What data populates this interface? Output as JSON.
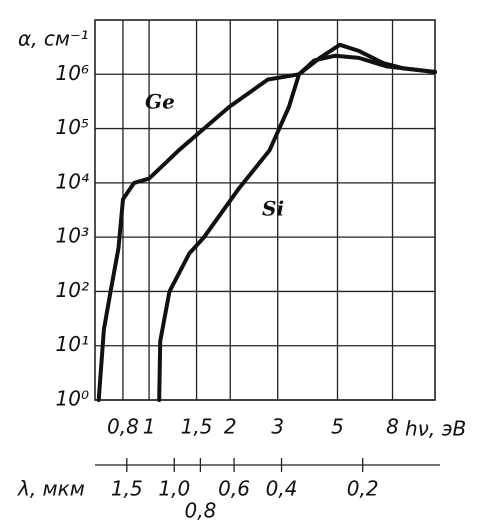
{
  "chart_data": {
    "type": "line",
    "y_label": "α, см⁻¹",
    "x_label": "hν, эВ",
    "x2_label": "λ, мкм",
    "log_x": true,
    "log_y": true,
    "grid": true,
    "xlim": [
      0.63,
      11.5
    ],
    "ylim": [
      1,
      10000000
    ],
    "xticks": [
      {
        "value": 0.8,
        "label": "0,8"
      },
      1,
      {
        "value": 1.5,
        "label": "1,5"
      },
      2,
      3,
      5,
      8
    ],
    "x2ticks": [
      {
        "value": 1.5,
        "label": "1,5"
      },
      {
        "value": 1.0,
        "label": "1,0"
      },
      {
        "value": 0.8,
        "label": "0,8"
      },
      {
        "value": 0.6,
        "label": "0,6"
      },
      {
        "value": 0.4,
        "label": "0,4"
      },
      {
        "value": 0.2,
        "label": "0,2"
      }
    ],
    "yticks": [
      {
        "value": 1,
        "label": "10⁰"
      },
      {
        "value": 10,
        "label": "10¹"
      },
      {
        "value": 100,
        "label": "10²"
      },
      {
        "value": 1000,
        "label": "10³"
      },
      {
        "value": 10000,
        "label": "10⁴"
      },
      {
        "value": 100000,
        "label": "10⁵"
      },
      {
        "value": 1000000,
        "label": "10⁶"
      }
    ],
    "series": [
      {
        "name": "Ge",
        "color": "#111111",
        "x": [
          0.65,
          0.68,
          0.72,
          0.77,
          0.8,
          0.88,
          1.0,
          1.29,
          1.98,
          2.76,
          3.6,
          4.3,
          5.1,
          6.0,
          7.4,
          8.7,
          11.5
        ],
        "values": [
          1,
          20,
          100,
          630,
          5000,
          10000,
          12000,
          40000,
          250000,
          800000,
          1000000,
          2000000,
          3500000,
          2700000,
          1600000,
          1300000,
          1100000
        ]
      },
      {
        "name": "Si",
        "color": "#111111",
        "x": [
          1.09,
          1.1,
          1.19,
          1.41,
          1.6,
          2.16,
          2.8,
          3.3,
          3.6,
          4.1,
          4.9,
          6.0,
          7.6,
          11.5
        ],
        "values": [
          1,
          12,
          100,
          500,
          1000,
          8000,
          40000,
          250000,
          1000000,
          1800000,
          2200000,
          2000000,
          1400000,
          1100000
        ]
      }
    ]
  }
}
